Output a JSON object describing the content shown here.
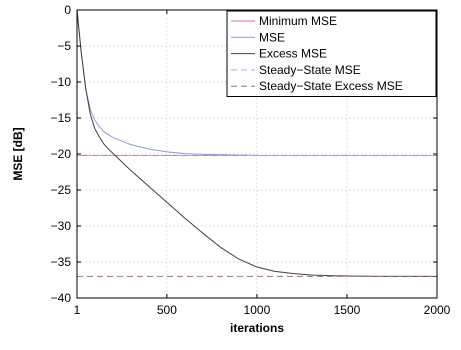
{
  "chart_data": {
    "type": "line",
    "xlabel": "iterations",
    "ylabel": "MSE [dB]",
    "xlim": [
      1,
      2000
    ],
    "ylim": [
      -40,
      0
    ],
    "x_ticks": [
      1,
      500,
      1000,
      1500,
      2000
    ],
    "y_ticks": [
      0,
      -5,
      -10,
      -15,
      -20,
      -25,
      -30,
      -35,
      -40
    ],
    "grid": true,
    "legend_position": "top-right",
    "series": [
      {
        "name": "Minimum MSE",
        "color": "#e0707a",
        "style": "solid",
        "x": [
          1,
          2000
        ],
        "y": [
          -20.2,
          -20.2
        ]
      },
      {
        "name": "MSE",
        "color": "#8a9cd8",
        "style": "solid",
        "x": [
          1,
          25,
          50,
          75,
          100,
          125,
          150,
          200,
          250,
          300,
          400,
          500,
          600,
          700,
          800,
          1000,
          1500,
          2000
        ],
        "y": [
          0,
          -6,
          -11,
          -13.8,
          -15.3,
          -16.2,
          -16.9,
          -17.7,
          -18.2,
          -18.7,
          -19.3,
          -19.7,
          -19.95,
          -20.05,
          -20.1,
          -20.2,
          -20.2,
          -20.2
        ]
      },
      {
        "name": "Excess MSE",
        "color": "#404040",
        "style": "solid",
        "x": [
          1,
          25,
          50,
          75,
          100,
          125,
          150,
          175,
          200,
          300,
          400,
          500,
          600,
          700,
          800,
          900,
          1000,
          1100,
          1200,
          1300,
          1400,
          1500,
          1700,
          2000
        ],
        "y": [
          0,
          -6,
          -11,
          -14.5,
          -16.5,
          -17.6,
          -18.6,
          -19.3,
          -19.9,
          -22.3,
          -24.5,
          -26.7,
          -28.9,
          -31,
          -33,
          -34.6,
          -35.7,
          -36.3,
          -36.6,
          -36.8,
          -36.9,
          -36.95,
          -37,
          -37
        ]
      },
      {
        "name": "Steady−State MSE",
        "color": "#9fb0dc",
        "style": "dashed",
        "x": [
          1,
          2000
        ],
        "y": [
          -20.2,
          -20.2
        ]
      },
      {
        "name": "Steady−State Excess MSE",
        "color": "#a07070",
        "style": "dashed",
        "x": [
          1,
          2000
        ],
        "y": [
          -37,
          -37
        ]
      }
    ]
  }
}
